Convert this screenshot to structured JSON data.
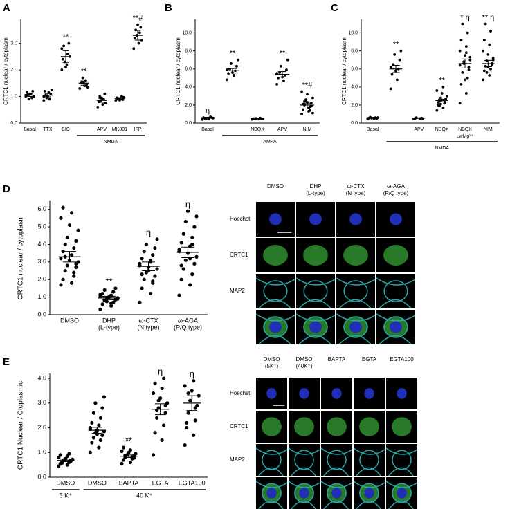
{
  "chart_data": [
    {
      "type": "dot",
      "panel": "A",
      "y_label": "CRTC1 nuclear / cytoplasm",
      "categories": [
        "Basal",
        "TTX",
        "BIC",
        null,
        "APV",
        "MK801",
        "IFP"
      ],
      "category_notes": [
        null,
        null,
        null,
        null,
        null,
        null,
        null
      ],
      "groups": [
        null,
        null,
        null,
        "NMDA",
        "NMDA",
        "NMDA",
        "NMDA"
      ],
      "annotations": [
        null,
        null,
        "**",
        "**",
        null,
        null,
        "**#"
      ],
      "means": [
        1.05,
        1.05,
        2.5,
        1.5,
        0.85,
        0.92,
        3.3
      ],
      "sem": [
        0.05,
        0.06,
        0.22,
        0.08,
        0.07,
        0.04,
        0.18
      ],
      "points": [
        [
          1.0,
          1.1,
          1.15,
          0.95,
          1.05,
          1.2,
          0.9,
          1.0,
          1.1,
          1.05
        ],
        [
          1.0,
          1.15,
          1.2,
          0.9,
          1.05,
          1.1,
          0.95,
          1.25,
          1.0,
          0.85
        ],
        [
          2.0,
          2.2,
          2.4,
          2.6,
          2.9,
          3.0,
          2.3,
          2.5,
          2.1,
          2.8
        ],
        [
          1.3,
          1.4,
          1.5,
          1.6,
          1.55,
          1.45,
          1.7,
          1.35,
          1.5
        ],
        [
          0.6,
          0.7,
          0.8,
          0.9,
          1.0,
          1.1,
          0.85,
          0.75,
          0.95
        ],
        [
          0.85,
          0.9,
          0.95,
          1.0,
          0.9,
          0.88,
          0.92,
          0.97,
          0.86
        ],
        [
          2.8,
          3.0,
          3.2,
          3.4,
          3.5,
          3.6,
          3.3,
          3.1,
          3.7
        ]
      ],
      "ylim": [
        0,
        3.9
      ],
      "yticks": [
        {
          "value": 0,
          "label": "0.0"
        },
        {
          "value": 1,
          "label": "1.0"
        },
        {
          "value": 2,
          "label": "2.0"
        },
        {
          "value": 3,
          "label": "3.0"
        }
      ],
      "color": "#000000"
    },
    {
      "type": "dot",
      "panel": "B",
      "y_label": "CRTC1 nuclear / cytoplasm",
      "categories": [
        "Basal",
        null,
        "NBQX",
        "APV",
        "NIM"
      ],
      "category_notes": [
        null,
        null,
        null,
        null,
        null
      ],
      "groups": [
        null,
        "AMPA",
        "AMPA",
        "AMPA",
        "AMPA"
      ],
      "annotations": [
        "η",
        "**",
        null,
        "**",
        "**#"
      ],
      "means": [
        0.6,
        5.8,
        0.5,
        5.4,
        2.0
      ],
      "sem": [
        0.05,
        0.25,
        0.03,
        0.3,
        0.2
      ],
      "points": [
        [
          0.4,
          0.5,
          0.6,
          0.7,
          0.5,
          0.6,
          0.45,
          0.55
        ],
        [
          4.8,
          5.2,
          5.5,
          5.8,
          6.0,
          6.3,
          6.6,
          7.0,
          5.6,
          5.9,
          5.3
        ],
        [
          0.4,
          0.45,
          0.5,
          0.55,
          0.5,
          0.48,
          0.52,
          0.47
        ],
        [
          4.3,
          4.7,
          5.0,
          5.3,
          5.6,
          5.9,
          6.3,
          7.0,
          5.1,
          5.5
        ],
        [
          1.0,
          1.3,
          1.5,
          1.8,
          2.0,
          2.2,
          2.5,
          2.8,
          3.2,
          3.5,
          1.7,
          2.1,
          1.4,
          2.4,
          1.9,
          2.6,
          1.1,
          2.3
        ]
      ],
      "ylim": [
        0,
        11.5
      ],
      "yticks": [
        {
          "value": 0,
          "label": "0.0"
        },
        {
          "value": 2,
          "label": "2.0"
        },
        {
          "value": 4,
          "label": "4.0"
        },
        {
          "value": 6,
          "label": "6.0"
        },
        {
          "value": 8,
          "label": "8.0"
        },
        {
          "value": 10,
          "label": "10.0"
        }
      ],
      "color": "#000000"
    },
    {
      "type": "dot",
      "panel": "C",
      "y_label": "CRTC1 nuclear / cytoplasm",
      "categories": [
        "Basal",
        null,
        "APV",
        "NBQX",
        "NBQX",
        "NIM"
      ],
      "category_notes": [
        null,
        null,
        null,
        null,
        "LwMg²⁺",
        null
      ],
      "groups": [
        null,
        "NMDA",
        "NMDA",
        "NMDA",
        "NMDA",
        "NMDA"
      ],
      "annotations": [
        null,
        "**",
        null,
        "**",
        "* η",
        "** η"
      ],
      "means": [
        0.6,
        6.0,
        0.55,
        2.5,
        6.6,
        6.6
      ],
      "sem": [
        0.04,
        0.4,
        0.03,
        0.15,
        0.5,
        0.35
      ],
      "points": [
        [
          0.45,
          0.5,
          0.55,
          0.6,
          0.65,
          0.5,
          0.55,
          0.6
        ],
        [
          3.8,
          4.8,
          5.4,
          6.0,
          6.5,
          7.0,
          7.6,
          8.0,
          5.8,
          6.2
        ],
        [
          0.45,
          0.5,
          0.52,
          0.55,
          0.6,
          0.5
        ],
        [
          1.4,
          1.7,
          2.0,
          2.2,
          2.4,
          2.6,
          2.8,
          3.0,
          3.3,
          3.6,
          4.0,
          2.3,
          2.5,
          1.9,
          2.7,
          2.1
        ],
        [
          2.2,
          3.3,
          4.3,
          5.0,
          5.6,
          6.2,
          6.6,
          7.0,
          7.5,
          8.0,
          8.5,
          9.2,
          10.0,
          11.0,
          5.9,
          6.8,
          7.3,
          4.8,
          6.4,
          7.8
        ],
        [
          4.8,
          5.3,
          5.8,
          6.0,
          6.3,
          6.6,
          6.9,
          7.2,
          7.6,
          8.0,
          8.7,
          9.2,
          10.2,
          11.0,
          6.5,
          5.6,
          7.0,
          6.2
        ]
      ],
      "ylim": [
        0,
        11.5
      ],
      "yticks": [
        {
          "value": 0,
          "label": "0.0"
        },
        {
          "value": 2,
          "label": "2.0"
        },
        {
          "value": 4,
          "label": "4.0"
        },
        {
          "value": 6,
          "label": "6.0"
        },
        {
          "value": 8,
          "label": "8.0"
        },
        {
          "value": 10,
          "label": "10.0"
        }
      ],
      "color": "#000000"
    },
    {
      "type": "dot",
      "panel": "D",
      "y_label": "CRTC1 nuclear / cytoplasm",
      "categories": [
        "DMSO",
        "DHP",
        "ω-CTX",
        "ω-AGA"
      ],
      "category_notes": [
        null,
        "(L-type)",
        "(N type)",
        "(P/Q type)"
      ],
      "groups": [
        null,
        null,
        null,
        null
      ],
      "annotations": [
        null,
        "**",
        "η",
        "η"
      ],
      "means": [
        3.3,
        0.95,
        2.75,
        3.55
      ],
      "sem": [
        0.3,
        0.1,
        0.25,
        0.3
      ],
      "points": [
        [
          1.7,
          1.8,
          2.0,
          2.2,
          2.5,
          2.7,
          2.8,
          3.0,
          3.1,
          3.2,
          3.4,
          3.6,
          3.8,
          4.0,
          4.2,
          4.4,
          4.8,
          5.1,
          5.5,
          5.8,
          6.1,
          2.4,
          3.3,
          2.9
        ],
        [
          0.3,
          0.5,
          0.6,
          0.7,
          0.8,
          0.85,
          0.9,
          0.95,
          1.0,
          1.05,
          1.1,
          1.2,
          1.3,
          1.4,
          1.5,
          0.75,
          0.9,
          1.0,
          1.15,
          0.65
        ],
        [
          0.7,
          1.2,
          1.5,
          1.8,
          2.0,
          2.2,
          2.4,
          2.6,
          2.7,
          2.8,
          3.0,
          3.2,
          3.4,
          3.6,
          3.8,
          4.0,
          4.3,
          2.5,
          2.9,
          3.1,
          2.3,
          1.9
        ],
        [
          1.1,
          1.7,
          2.0,
          2.3,
          2.6,
          2.9,
          3.1,
          3.3,
          3.5,
          3.7,
          3.9,
          4.1,
          4.4,
          4.6,
          5.0,
          5.3,
          5.6,
          5.9,
          3.6,
          3.2,
          2.8,
          4.0
        ]
      ],
      "ylim": [
        0,
        6.5
      ],
      "yticks": [
        {
          "value": 0,
          "label": "0.0"
        },
        {
          "value": 1,
          "label": "1.0"
        },
        {
          "value": 2,
          "label": "2.0"
        },
        {
          "value": 3,
          "label": "3.0"
        },
        {
          "value": 4,
          "label": "4.0"
        },
        {
          "value": 5,
          "label": "5.0"
        },
        {
          "value": 6,
          "label": "6.0"
        }
      ],
      "color": "#000000"
    },
    {
      "type": "dot",
      "panel": "E",
      "y_label": "CRTC1 Nuclear / Ctoplasmic",
      "categories": [
        "DMSO",
        "DMSO",
        "BAPTA",
        "EGTA",
        "EGTA100"
      ],
      "category_notes": [
        null,
        null,
        null,
        null,
        null
      ],
      "groups": [
        "5 K⁺",
        "40 K⁺",
        "40 K⁺",
        "40 K⁺",
        "40 K⁺"
      ],
      "annotations": [
        null,
        null,
        "**",
        "η",
        "η"
      ],
      "means": [
        0.68,
        1.9,
        0.85,
        2.75,
        3.0
      ],
      "sem": [
        0.05,
        0.12,
        0.05,
        0.22,
        0.3
      ],
      "points": [
        [
          0.45,
          0.5,
          0.55,
          0.6,
          0.62,
          0.65,
          0.7,
          0.72,
          0.75,
          0.8,
          0.85,
          0.9,
          0.95,
          0.58,
          0.68
        ],
        [
          1.0,
          1.2,
          1.4,
          1.5,
          1.6,
          1.7,
          1.8,
          1.85,
          1.9,
          2.0,
          2.1,
          2.2,
          2.4,
          2.6,
          2.8,
          3.0,
          3.25,
          1.75,
          1.95
        ],
        [
          0.55,
          0.6,
          0.7,
          0.75,
          0.8,
          0.85,
          0.9,
          0.95,
          1.0,
          1.05,
          1.1,
          1.2,
          0.82,
          0.88,
          0.78
        ],
        [
          0.9,
          1.5,
          1.8,
          2.1,
          2.4,
          2.6,
          2.8,
          3.0,
          3.2,
          3.4,
          3.6,
          3.8,
          4.0,
          2.7,
          2.9,
          3.1
        ],
        [
          1.3,
          1.7,
          2.0,
          2.3,
          2.6,
          2.9,
          3.1,
          3.3,
          3.5,
          3.7,
          3.9,
          2.2,
          2.8,
          3.4
        ]
      ],
      "ylim": [
        0,
        4.2
      ],
      "yticks": [
        {
          "value": 0,
          "label": "0.0"
        },
        {
          "value": 1,
          "label": "1.0"
        },
        {
          "value": 2,
          "label": "2.0"
        },
        {
          "value": 3,
          "label": "3.0"
        },
        {
          "value": 4,
          "label": "4.0"
        }
      ],
      "color": "#000000"
    }
  ],
  "micrographs": [
    {
      "columns": [
        [
          "DMSO"
        ],
        [
          "DHP",
          "(L-type)"
        ],
        [
          "ω-CTX",
          "(N type)"
        ],
        [
          "ω-AGA",
          "(P/Q type)"
        ]
      ],
      "rows": [
        "Hoechst",
        "CRTC1",
        "MAP2"
      ]
    },
    {
      "columns": [
        [
          "DMSO",
          "(5K⁺)"
        ],
        [
          "DMSO",
          "(40K⁺)"
        ],
        [
          "BAPTA"
        ],
        [
          "EGTA"
        ],
        [
          "EGTA100"
        ]
      ],
      "rows": [
        "Hoechst",
        "CRTC1",
        "MAP2"
      ]
    }
  ]
}
